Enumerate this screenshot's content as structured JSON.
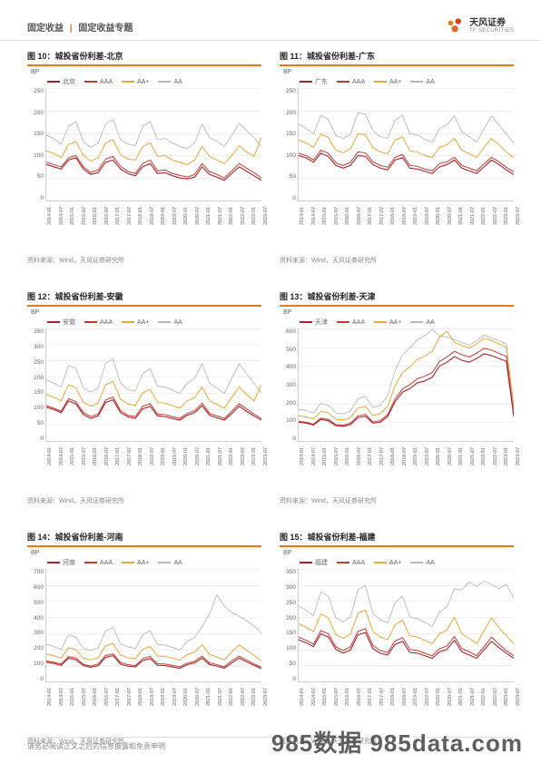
{
  "header": {
    "category": "固定收益",
    "subtitle": "固定收益专题",
    "logo_cn": "天风证券",
    "logo_en": "TF SECURITIES"
  },
  "colors": {
    "accent": "#e67817",
    "grid": "#f0f0f0",
    "axis": "#cccccc",
    "series_primary": "#a6212c",
    "series_aaa": "#c0392b",
    "series_aa_plus": "#e8a736",
    "series_aa": "#b8b8b8"
  },
  "x_ticks": [
    "2014-01",
    "2014-07",
    "2015-01",
    "2015-07",
    "2016-01",
    "2016-07",
    "2017-01",
    "2017-07",
    "2018-01",
    "2018-07",
    "2019-01",
    "2019-07",
    "2020-01",
    "2020-07",
    "2021-01",
    "2021-07",
    "2022-01",
    "2022-07",
    "2023-01",
    "2023-07"
  ],
  "y_label": "BP",
  "legend_labels": {
    "pri": "",
    "aaa": "AAA",
    "aap": "AA+",
    "aa": "AA"
  },
  "source_text": "资料来源：Wind，天风证券研究所",
  "charts": [
    {
      "id": "fig10",
      "title": "图 10：城投省份利差-北京",
      "primary_label": "北京",
      "ylim": [
        0,
        250
      ],
      "ytick_step": 50,
      "s_pri": [
        80,
        75,
        70,
        90,
        95,
        70,
        58,
        62,
        85,
        90,
        70,
        60,
        55,
        75,
        82,
        60,
        62,
        55,
        50,
        48,
        52,
        75,
        58,
        52,
        45,
        60,
        75,
        65,
        55,
        45
      ],
      "s_aaa": [
        85,
        80,
        75,
        95,
        100,
        75,
        62,
        68,
        92,
        98,
        76,
        65,
        60,
        82,
        90,
        66,
        68,
        60,
        56,
        52,
        58,
        82,
        64,
        58,
        50,
        66,
        82,
        72,
        62,
        50
      ],
      "s_aap": [
        110,
        105,
        95,
        125,
        130,
        100,
        88,
        95,
        128,
        135,
        102,
        92,
        90,
        120,
        128,
        98,
        100,
        90,
        85,
        80,
        90,
        120,
        98,
        90,
        82,
        100,
        122,
        108,
        98,
        140
      ],
      "s_aa": [
        145,
        138,
        125,
        165,
        175,
        130,
        118,
        128,
        170,
        180,
        135,
        125,
        122,
        165,
        175,
        135,
        138,
        128,
        120,
        115,
        128,
        170,
        140,
        132,
        120,
        145,
        172,
        155,
        140,
        120
      ]
    },
    {
      "id": "fig11",
      "title": "图 11：城投省份利差-广东",
      "primary_label": "广东",
      "ylim": [
        0,
        250
      ],
      "ytick_step": 50,
      "s_pri": [
        100,
        95,
        85,
        105,
        98,
        78,
        72,
        78,
        100,
        98,
        80,
        72,
        68,
        90,
        95,
        72,
        70,
        65,
        60,
        75,
        80,
        90,
        72,
        66,
        60,
        75,
        90,
        80,
        68,
        58
      ],
      "s_aaa": [
        105,
        100,
        90,
        112,
        105,
        84,
        78,
        85,
        108,
        106,
        86,
        78,
        74,
        96,
        102,
        78,
        76,
        70,
        66,
        82,
        86,
        96,
        78,
        72,
        66,
        82,
        96,
        86,
        74,
        64
      ],
      "s_aap": [
        135,
        128,
        118,
        148,
        140,
        112,
        106,
        115,
        148,
        146,
        118,
        108,
        104,
        134,
        142,
        110,
        108,
        100,
        96,
        118,
        124,
        138,
        112,
        104,
        96,
        118,
        138,
        124,
        108,
        95
      ],
      "s_aa": [
        170,
        160,
        148,
        190,
        180,
        145,
        138,
        148,
        195,
        192,
        155,
        142,
        138,
        178,
        190,
        148,
        146,
        136,
        130,
        160,
        168,
        188,
        152,
        142,
        130,
        160,
        188,
        168,
        148,
        128
      ]
    },
    {
      "id": "fig12",
      "title": "图 12：城投省份利差-安徽",
      "primary_label": "安徽",
      "ylim": [
        0,
        350
      ],
      "ytick_step": 50,
      "s_pri": [
        105,
        98,
        88,
        125,
        115,
        82,
        70,
        78,
        120,
        128,
        88,
        75,
        70,
        100,
        108,
        78,
        76,
        70,
        65,
        80,
        88,
        110,
        80,
        72,
        65,
        85,
        108,
        92,
        78,
        65
      ],
      "s_aaa": [
        110,
        102,
        92,
        132,
        122,
        88,
        76,
        84,
        128,
        136,
        94,
        80,
        76,
        108,
        116,
        84,
        82,
        76,
        70,
        86,
        94,
        118,
        86,
        78,
        70,
        92,
        116,
        100,
        84,
        70
      ],
      "s_aap": [
        145,
        136,
        125,
        175,
        165,
        120,
        108,
        118,
        175,
        185,
        130,
        115,
        110,
        150,
        160,
        120,
        118,
        110,
        102,
        125,
        135,
        168,
        125,
        114,
        102,
        135,
        168,
        145,
        125,
        175
      ],
      "s_aa": [
        190,
        180,
        168,
        235,
        225,
        165,
        152,
        165,
        242,
        255,
        180,
        160,
        155,
        210,
        225,
        170,
        168,
        158,
        148,
        180,
        195,
        240,
        180,
        165,
        148,
        195,
        240,
        210,
        180,
        150
      ]
    },
    {
      "id": "fig13",
      "title": "图 13：城投省份利差-天津",
      "primary_label": "天津",
      "ylim": [
        0,
        600
      ],
      "ytick_step": 100,
      "s_pri": [
        100,
        95,
        85,
        115,
        108,
        82,
        78,
        88,
        125,
        132,
        95,
        100,
        130,
        210,
        260,
        280,
        310,
        320,
        340,
        400,
        420,
        450,
        430,
        420,
        440,
        465,
        455,
        440,
        425,
        130
      ],
      "s_aaa": [
        105,
        100,
        90,
        122,
        115,
        88,
        84,
        95,
        134,
        142,
        102,
        108,
        140,
        225,
        278,
        300,
        332,
        345,
        365,
        425,
        448,
        478,
        460,
        448,
        468,
        495,
        485,
        468,
        452,
        140
      ],
      "s_aap": [
        135,
        128,
        118,
        158,
        150,
        116,
        112,
        125,
        175,
        185,
        136,
        145,
        185,
        295,
        365,
        395,
        435,
        452,
        478,
        555,
        585,
        525,
        510,
        495,
        518,
        548,
        535,
        518,
        500,
        170
      ],
      "s_aa": [
        170,
        162,
        150,
        200,
        190,
        150,
        145,
        160,
        225,
        238,
        178,
        190,
        240,
        375,
        460,
        495,
        540,
        560,
        595,
        560,
        555,
        540,
        525,
        510,
        535,
        565,
        550,
        535,
        515,
        190
      ]
    },
    {
      "id": "fig14",
      "title": "图 14：城投省份利差-河南",
      "primary_label": "河南",
      "ylim": [
        0,
        700
      ],
      "ytick_step": 100,
      "s_pri": [
        120,
        112,
        100,
        145,
        135,
        98,
        88,
        98,
        150,
        160,
        108,
        95,
        90,
        130,
        142,
        100,
        98,
        90,
        82,
        105,
        115,
        145,
        105,
        95,
        82,
        115,
        145,
        122,
        100,
        80
      ],
      "s_aaa": [
        128,
        120,
        108,
        155,
        145,
        106,
        96,
        108,
        162,
        172,
        118,
        104,
        98,
        142,
        155,
        110,
        108,
        100,
        90,
        115,
        125,
        158,
        115,
        105,
        90,
        128,
        158,
        134,
        110,
        88
      ],
      "s_aap": [
        170,
        160,
        145,
        210,
        198,
        145,
        134,
        148,
        222,
        236,
        164,
        148,
        140,
        200,
        218,
        158,
        155,
        145,
        132,
        168,
        182,
        228,
        168,
        152,
        132,
        185,
        228,
        195,
        162,
        128
      ],
      "s_aa": [
        230,
        218,
        198,
        290,
        275,
        205,
        192,
        210,
        315,
        335,
        234,
        215,
        205,
        290,
        315,
        230,
        225,
        212,
        195,
        250,
        272,
        340,
        420,
        540,
        468,
        430,
        405,
        378,
        345,
        300
      ]
    },
    {
      "id": "fig15",
      "title": "图 15：城投省份利差-福建",
      "primary_label": "福建",
      "ylim": [
        0,
        350
      ],
      "ytick_step": 50,
      "s_pri": [
        130,
        120,
        108,
        148,
        138,
        100,
        88,
        98,
        145,
        152,
        102,
        88,
        82,
        115,
        125,
        90,
        88,
        80,
        72,
        92,
        100,
        128,
        92,
        82,
        72,
        98,
        125,
        105,
        88,
        72
      ],
      "s_aaa": [
        138,
        128,
        116,
        158,
        148,
        108,
        96,
        108,
        156,
        164,
        112,
        96,
        90,
        126,
        136,
        100,
        96,
        88,
        80,
        102,
        110,
        140,
        102,
        92,
        80,
        108,
        138,
        116,
        96,
        80
      ],
      "s_aap": [
        180,
        168,
        155,
        210,
        198,
        146,
        134,
        148,
        212,
        222,
        155,
        138,
        130,
        176,
        190,
        142,
        138,
        128,
        118,
        148,
        160,
        200,
        148,
        134,
        118,
        158,
        198,
        168,
        142,
        118
      ],
      "s_aa": [
        235,
        222,
        205,
        278,
        265,
        198,
        185,
        200,
        285,
        298,
        212,
        192,
        182,
        245,
        265,
        200,
        196,
        184,
        172,
        215,
        232,
        288,
        285,
        310,
        295,
        312,
        302,
        288,
        302,
        260
      ]
    }
  ],
  "footer": {
    "disclaimer": "请务必阅读正文之后的信息披露和免责申明",
    "watermark": "985数据 985data.com"
  }
}
